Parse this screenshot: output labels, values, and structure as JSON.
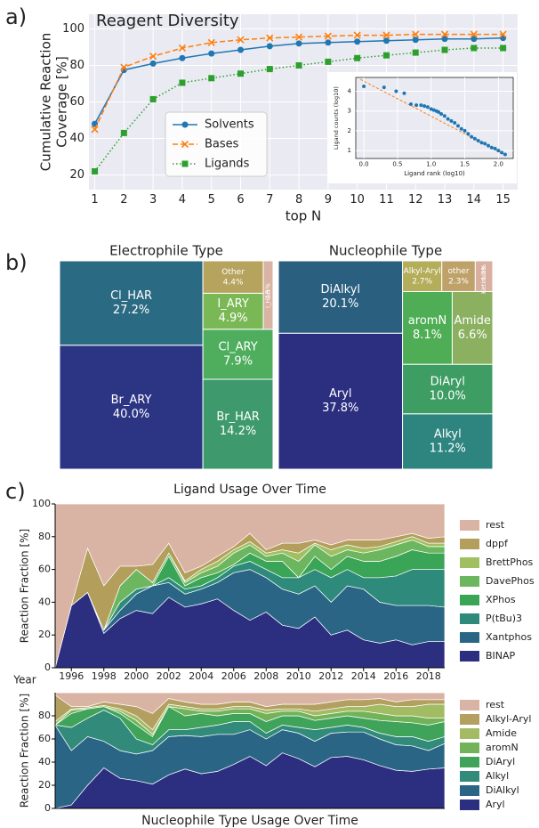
{
  "panel_labels": [
    "a)",
    "b)",
    "c)"
  ],
  "chart_data": [
    {
      "type": "line",
      "title": "Reagent Diversity",
      "ylabel": [
        "Cumulative Reaction",
        "Coverage [%]"
      ],
      "xlabel": "top N",
      "x": [
        1,
        2,
        3,
        4,
        5,
        6,
        7,
        8,
        9,
        10,
        11,
        12,
        13,
        14,
        15
      ],
      "xlim": [
        0.8,
        15.5
      ],
      "xticks": [
        1,
        2,
        3,
        4,
        5,
        6,
        7,
        8,
        9,
        10,
        11,
        12,
        13,
        14,
        15
      ],
      "ylim": [
        12,
        108
      ],
      "yticks": [
        20,
        40,
        60,
        80,
        100
      ],
      "grid": true,
      "series": [
        {
          "name": "Solvents",
          "color": "#1f77b4",
          "marker": "circle",
          "linestyle": "solid",
          "values": [
            48,
            77.5,
            81,
            84,
            86.5,
            88.5,
            90.5,
            92,
            92.5,
            93,
            93.5,
            94,
            94.5,
            94.5,
            95
          ]
        },
        {
          "name": "Bases",
          "color": "#ff7f0e",
          "marker": "x",
          "linestyle": "dashed",
          "values": [
            45,
            79,
            85,
            89.5,
            92.5,
            94,
            95,
            95.5,
            96,
            96.5,
            96.5,
            97,
            97,
            97,
            97
          ]
        },
        {
          "name": "Ligands",
          "color": "#2ca02c",
          "marker": "square",
          "linestyle": "dotted",
          "values": [
            22,
            43,
            61.5,
            70.5,
            73,
            75.5,
            78,
            80,
            82,
            84,
            85.5,
            87,
            88.5,
            89.5,
            89.5
          ]
        }
      ]
    },
    {
      "type": "scatter",
      "xlabel": "Ligand rank (log10)",
      "ylabel": "Ligand counts (log10)",
      "color": "#1f77b4",
      "x": [
        0,
        0.3,
        0.48,
        0.6,
        0.7,
        0.78,
        0.85,
        0.9,
        0.95,
        1.0,
        1.04,
        1.08,
        1.11,
        1.15,
        1.2,
        1.25,
        1.3,
        1.35,
        1.4,
        1.45,
        1.5,
        1.55,
        1.6,
        1.65,
        1.7,
        1.75,
        1.8,
        1.85,
        1.9,
        1.95,
        2.0,
        2.05,
        2.1
      ],
      "values": [
        4.25,
        4.2,
        4.0,
        3.9,
        3.35,
        3.3,
        3.3,
        3.25,
        3.2,
        3.1,
        3.05,
        3.0,
        2.95,
        2.85,
        2.75,
        2.6,
        2.5,
        2.4,
        2.25,
        2.1,
        2.0,
        1.85,
        1.7,
        1.6,
        1.5,
        1.4,
        1.35,
        1.25,
        1.15,
        1.1,
        1.0,
        0.9,
        0.8
      ],
      "fit": {
        "x": [
          -0.05,
          2.12
        ],
        "values": [
          4.6,
          0.75
        ],
        "color": "#ff7f0e"
      },
      "xlim": [
        -0.12,
        2.22
      ],
      "xticks": [
        {
          "value": 0,
          "label": "0.0"
        },
        {
          "value": 0.5,
          "label": "0.5"
        },
        {
          "value": 1,
          "label": "1.0"
        },
        {
          "value": 1.5,
          "label": "1.5"
        },
        {
          "value": 2,
          "label": "2.0"
        }
      ],
      "ylim": [
        0.6,
        4.7
      ],
      "yticks": [
        1,
        2,
        3,
        4
      ],
      "grid": true
    },
    {
      "type": "treemap",
      "title": "Electrophile Type",
      "categories": [
        "Br_ARY",
        "Cl_HAR",
        "Br_HAR",
        "Cl_ARY",
        "I_ARY",
        "Other",
        "I_HAR"
      ],
      "values": [
        40.0,
        27.2,
        14.2,
        7.9,
        4.9,
        4.4,
        1.5
      ],
      "value_labels": [
        "40.0%",
        "27.2%",
        "14.2%",
        "7.9%",
        "4.9%",
        "4.4%",
        "1.5%"
      ],
      "colors": [
        "#2c3584",
        "#2a6a82",
        "#3e9a6c",
        "#4fae5e",
        "#7ab855",
        "#b6a45e",
        "#d9b3a3"
      ]
    },
    {
      "type": "treemap",
      "title": "Nucleophile Type",
      "categories": [
        "Aryl",
        "DiAlkyl",
        "Alkyl",
        "DiAryl",
        "aromN",
        "Amide",
        "Alkyl-Aryl",
        "other",
        "Ketimine"
      ],
      "values": [
        37.8,
        20.1,
        11.2,
        10.0,
        8.1,
        6.6,
        2.7,
        2.3,
        1.2
      ],
      "value_labels": [
        "37.8%",
        "20.1%",
        "11.2%",
        "10.0%",
        "8.1%",
        "6.6%",
        "2.7%",
        "2.3%",
        "1.2%"
      ],
      "colors": [
        "#2c2f80",
        "#2a5f80",
        "#2e8580",
        "#3d9d63",
        "#4fae55",
        "#8ab060",
        "#b4ad5a",
        "#bfa26a",
        "#d9b0a0"
      ]
    },
    {
      "type": "stackedarea",
      "title": "Ligand Usage Over Time",
      "xlabel": "Year",
      "ylabel": "Reaction Fraction [%]",
      "x": [
        1995,
        1996,
        1997,
        1998,
        1999,
        2000,
        2001,
        2002,
        2003,
        2004,
        2005,
        2006,
        2007,
        2008,
        2009,
        2010,
        2011,
        2012,
        2013,
        2014,
        2015,
        2016,
        2017,
        2018,
        2019
      ],
      "xlim": [
        1995,
        2019
      ],
      "xticks": [
        1996,
        1998,
        2000,
        2002,
        2004,
        2006,
        2008,
        2010,
        2012,
        2014,
        2016,
        2018
      ],
      "ylim": [
        0,
        100
      ],
      "yticks": [
        0,
        20,
        40,
        60,
        80,
        100
      ],
      "series": [
        {
          "name": "BINAP",
          "color": "#2c2f80",
          "values": [
            0,
            38,
            46,
            21,
            30,
            35,
            33,
            43,
            37,
            39,
            42,
            35,
            29,
            34,
            26,
            24,
            31,
            20,
            23,
            17,
            15,
            17,
            14,
            16,
            16
          ]
        },
        {
          "name": "Xantphos",
          "color": "#2b6585",
          "values": [
            0,
            0,
            0,
            2,
            5,
            10,
            17,
            9,
            8,
            9,
            10,
            23,
            31,
            21,
            22,
            21,
            19,
            20,
            27,
            31,
            25,
            21,
            24,
            22,
            21
          ]
        },
        {
          "name": "P(tBu)3",
          "color": "#2e8a7a",
          "values": [
            0,
            0,
            0,
            0,
            5,
            3,
            0,
            3,
            3,
            2,
            3,
            4,
            5,
            5,
            7,
            10,
            10,
            15,
            10,
            7,
            15,
            18,
            22,
            22,
            23
          ]
        },
        {
          "name": "XPhos",
          "color": "#3aa556",
          "values": [
            0,
            0,
            0,
            0,
            0,
            0,
            0,
            13,
            2,
            5,
            3,
            1,
            5,
            5,
            10,
            0,
            8,
            5,
            8,
            10,
            10,
            12,
            12,
            10,
            10
          ]
        },
        {
          "name": "DavePhos",
          "color": "#6db660",
          "values": [
            0,
            0,
            0,
            0,
            10,
            12,
            2,
            2,
            2,
            3,
            4,
            7,
            5,
            3,
            5,
            10,
            7,
            8,
            4,
            5,
            7,
            7,
            6,
            4,
            4
          ]
        },
        {
          "name": "BrettPhos",
          "color": "#9fbf60",
          "values": [
            0,
            0,
            0,
            0,
            0,
            0,
            0,
            0,
            1,
            2,
            3,
            2,
            2,
            2,
            2,
            5,
            1,
            4,
            3,
            3,
            2,
            2,
            2,
            2,
            2
          ]
        },
        {
          "name": "dppf",
          "color": "#b39e5c",
          "values": [
            0,
            0,
            27,
            27,
            12,
            2,
            11,
            6,
            5,
            2,
            3,
            2,
            5,
            2,
            4,
            6,
            2,
            3,
            3,
            5,
            4,
            3,
            2,
            3,
            4
          ]
        },
        {
          "name": "rest",
          "color": "#d9b3a3",
          "values": [
            100,
            62,
            27,
            50,
            38,
            38,
            37,
            24,
            42,
            38,
            32,
            26,
            18,
            28,
            24,
            24,
            22,
            25,
            22,
            22,
            22,
            20,
            18,
            21,
            20
          ]
        }
      ]
    },
    {
      "type": "stackedarea",
      "title": "Nucleophile Type Usage Over Time",
      "ylabel": "Reaction Fraction [%]",
      "x": [
        1995,
        1996,
        1997,
        1998,
        1999,
        2000,
        2001,
        2002,
        2003,
        2004,
        2005,
        2006,
        2007,
        2008,
        2009,
        2010,
        2011,
        2012,
        2013,
        2014,
        2015,
        2016,
        2017,
        2018,
        2019
      ],
      "xlim": [
        1995,
        2019
      ],
      "ylim": [
        0,
        100
      ],
      "yticks": [
        0,
        20,
        40,
        60,
        80
      ],
      "series": [
        {
          "name": "Aryl",
          "color": "#2c2f80",
          "values": [
            0,
            3,
            20,
            35,
            26,
            24,
            21,
            29,
            34,
            30,
            32,
            38,
            45,
            37,
            48,
            43,
            36,
            44,
            45,
            42,
            37,
            33,
            32,
            34,
            35
          ]
        },
        {
          "name": "DiAlkyl",
          "color": "#2a6585",
          "values": [
            72,
            47,
            42,
            23,
            24,
            23,
            29,
            33,
            29,
            32,
            32,
            26,
            23,
            23,
            20,
            22,
            22,
            21,
            21,
            24,
            23,
            22,
            22,
            16,
            21
          ]
        },
        {
          "name": "Alkyl",
          "color": "#328a7a",
          "values": [
            0,
            20,
            16,
            27,
            28,
            13,
            5,
            6,
            5,
            8,
            8,
            11,
            7,
            5,
            4,
            5,
            10,
            5,
            6,
            4,
            5,
            7,
            8,
            8,
            6
          ]
        },
        {
          "name": "DiAryl",
          "color": "#3fa35a",
          "values": [
            0,
            12,
            8,
            3,
            4,
            12,
            7,
            20,
            12,
            12,
            8,
            7,
            7,
            10,
            8,
            10,
            8,
            8,
            8,
            8,
            11,
            13,
            12,
            14,
            13
          ]
        },
        {
          "name": "aromN",
          "color": "#72b35a",
          "values": [
            0,
            3,
            0,
            0,
            2,
            4,
            2,
            0,
            6,
            2,
            4,
            4,
            4,
            7,
            4,
            4,
            4,
            4,
            4,
            6,
            6,
            5,
            6,
            6,
            3
          ]
        },
        {
          "name": "Amide",
          "color": "#a3bb63",
          "values": [
            3,
            1,
            1,
            1,
            2,
            4,
            4,
            2,
            2,
            2,
            2,
            2,
            2,
            3,
            2,
            2,
            4,
            4,
            4,
            4,
            8,
            8,
            8,
            12,
            12
          ]
        },
        {
          "name": "Alkyl-Aryl",
          "color": "#b3a060",
          "values": [
            23,
            2,
            1,
            3,
            4,
            8,
            14,
            5,
            4,
            4,
            4,
            4,
            4,
            3,
            4,
            4,
            6,
            6,
            6,
            6,
            5,
            4,
            6,
            4,
            4
          ]
        },
        {
          "name": "rest",
          "color": "#d9b3a3",
          "values": [
            2,
            12,
            12,
            8,
            10,
            12,
            18,
            5,
            8,
            10,
            10,
            8,
            8,
            12,
            10,
            10,
            10,
            8,
            6,
            6,
            5,
            8,
            6,
            6,
            6
          ]
        }
      ]
    }
  ]
}
